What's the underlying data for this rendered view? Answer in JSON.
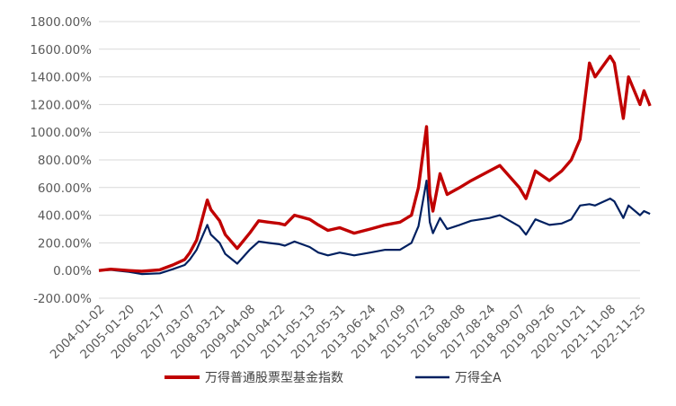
{
  "chart_data": {
    "type": "line",
    "title": "",
    "xlabel": "",
    "ylabel": "",
    "ylim": [
      -200,
      1800
    ],
    "yticks": [
      "-200.00%",
      "0.00%",
      "200.00%",
      "400.00%",
      "600.00%",
      "800.00%",
      "1000.00%",
      "1200.00%",
      "1400.00%",
      "1600.00%",
      "1800.00%"
    ],
    "ytick_values": [
      -200,
      0,
      200,
      400,
      600,
      800,
      1000,
      1200,
      1400,
      1600,
      1800
    ],
    "xticks": [
      "2004-01-02",
      "2005-01-20",
      "2006-02-17",
      "2007-03-07",
      "2008-03-21",
      "2009-04-08",
      "2010-04-22",
      "2011-05-13",
      "2012-05-31",
      "2013-06-24",
      "2014-07-09",
      "2015-07-23",
      "2016-08-08",
      "2017-08-24",
      "2018-09-07",
      "2019-09-26",
      "2020-10-21",
      "2021-11-08",
      "2022-11-25"
    ],
    "grid": true,
    "legend_position": "bottom",
    "colors": {
      "fund": "#c00000",
      "market": "#002060",
      "grid": "#d9d9d9",
      "text": "#595959"
    },
    "series": [
      {
        "name": "万得普通股票型基金指数",
        "x": [
          "2004-01-02",
          "2004-06-01",
          "2005-01-20",
          "2005-07-01",
          "2006-02-17",
          "2006-08-01",
          "2007-01-01",
          "2007-03-07",
          "2007-06-01",
          "2007-10-16",
          "2007-12-01",
          "2008-03-21",
          "2008-06-01",
          "2008-11-01",
          "2009-04-08",
          "2009-08-01",
          "2009-12-01",
          "2010-04-22",
          "2010-07-01",
          "2010-11-01",
          "2011-05-13",
          "2011-09-01",
          "2012-01-01",
          "2012-05-31",
          "2012-12-01",
          "2013-06-24",
          "2014-01-01",
          "2014-07-09",
          "2014-12-01",
          "2015-03-01",
          "2015-06-12",
          "2015-07-23",
          "2015-09-01",
          "2015-12-01",
          "2016-03-01",
          "2016-08-08",
          "2017-01-01",
          "2017-08-24",
          "2018-01-01",
          "2018-09-07",
          "2018-12-01",
          "2019-04-01",
          "2019-09-26",
          "2020-03-01",
          "2020-07-01",
          "2020-10-21",
          "2021-02-18",
          "2021-05-01",
          "2021-11-08",
          "2022-01-01",
          "2022-04-26",
          "2022-07-01",
          "2022-11-25",
          "2023-01-15",
          "2023-04-01"
        ],
        "values": [
          0,
          10,
          0,
          -5,
          5,
          40,
          80,
          130,
          220,
          510,
          440,
          360,
          260,
          160,
          270,
          360,
          350,
          340,
          330,
          400,
          370,
          330,
          290,
          310,
          270,
          300,
          330,
          350,
          400,
          600,
          1040,
          550,
          430,
          700,
          550,
          600,
          650,
          720,
          760,
          600,
          520,
          720,
          650,
          720,
          800,
          950,
          1500,
          1400,
          1550,
          1500,
          1100,
          1400,
          1200,
          1300,
          1190
        ]
      },
      {
        "name": "万得全A",
        "x": [
          "2004-01-02",
          "2004-06-01",
          "2005-01-20",
          "2005-07-01",
          "2006-02-17",
          "2006-08-01",
          "2007-01-01",
          "2007-03-07",
          "2007-06-01",
          "2007-10-16",
          "2007-12-01",
          "2008-03-21",
          "2008-06-01",
          "2008-11-01",
          "2009-04-08",
          "2009-08-01",
          "2009-12-01",
          "2010-04-22",
          "2010-07-01",
          "2010-11-01",
          "2011-05-13",
          "2011-09-01",
          "2012-01-01",
          "2012-05-31",
          "2012-12-01",
          "2013-06-24",
          "2014-01-01",
          "2014-07-09",
          "2014-12-01",
          "2015-03-01",
          "2015-06-12",
          "2015-07-23",
          "2015-09-01",
          "2015-12-01",
          "2016-03-01",
          "2016-08-08",
          "2017-01-01",
          "2017-08-24",
          "2018-01-01",
          "2018-09-07",
          "2018-12-01",
          "2019-04-01",
          "2019-09-26",
          "2020-03-01",
          "2020-07-01",
          "2020-10-21",
          "2021-02-18",
          "2021-05-01",
          "2021-11-08",
          "2022-01-01",
          "2022-04-26",
          "2022-07-01",
          "2022-11-25",
          "2023-01-15",
          "2023-04-01"
        ],
        "values": [
          0,
          5,
          -10,
          -25,
          -20,
          10,
          40,
          80,
          150,
          330,
          260,
          200,
          120,
          50,
          150,
          210,
          200,
          190,
          180,
          210,
          170,
          130,
          110,
          130,
          110,
          130,
          150,
          150,
          200,
          320,
          650,
          350,
          270,
          380,
          300,
          330,
          360,
          380,
          400,
          320,
          260,
          370,
          330,
          340,
          370,
          470,
          480,
          470,
          520,
          500,
          380,
          470,
          400,
          430,
          410
        ]
      }
    ]
  }
}
